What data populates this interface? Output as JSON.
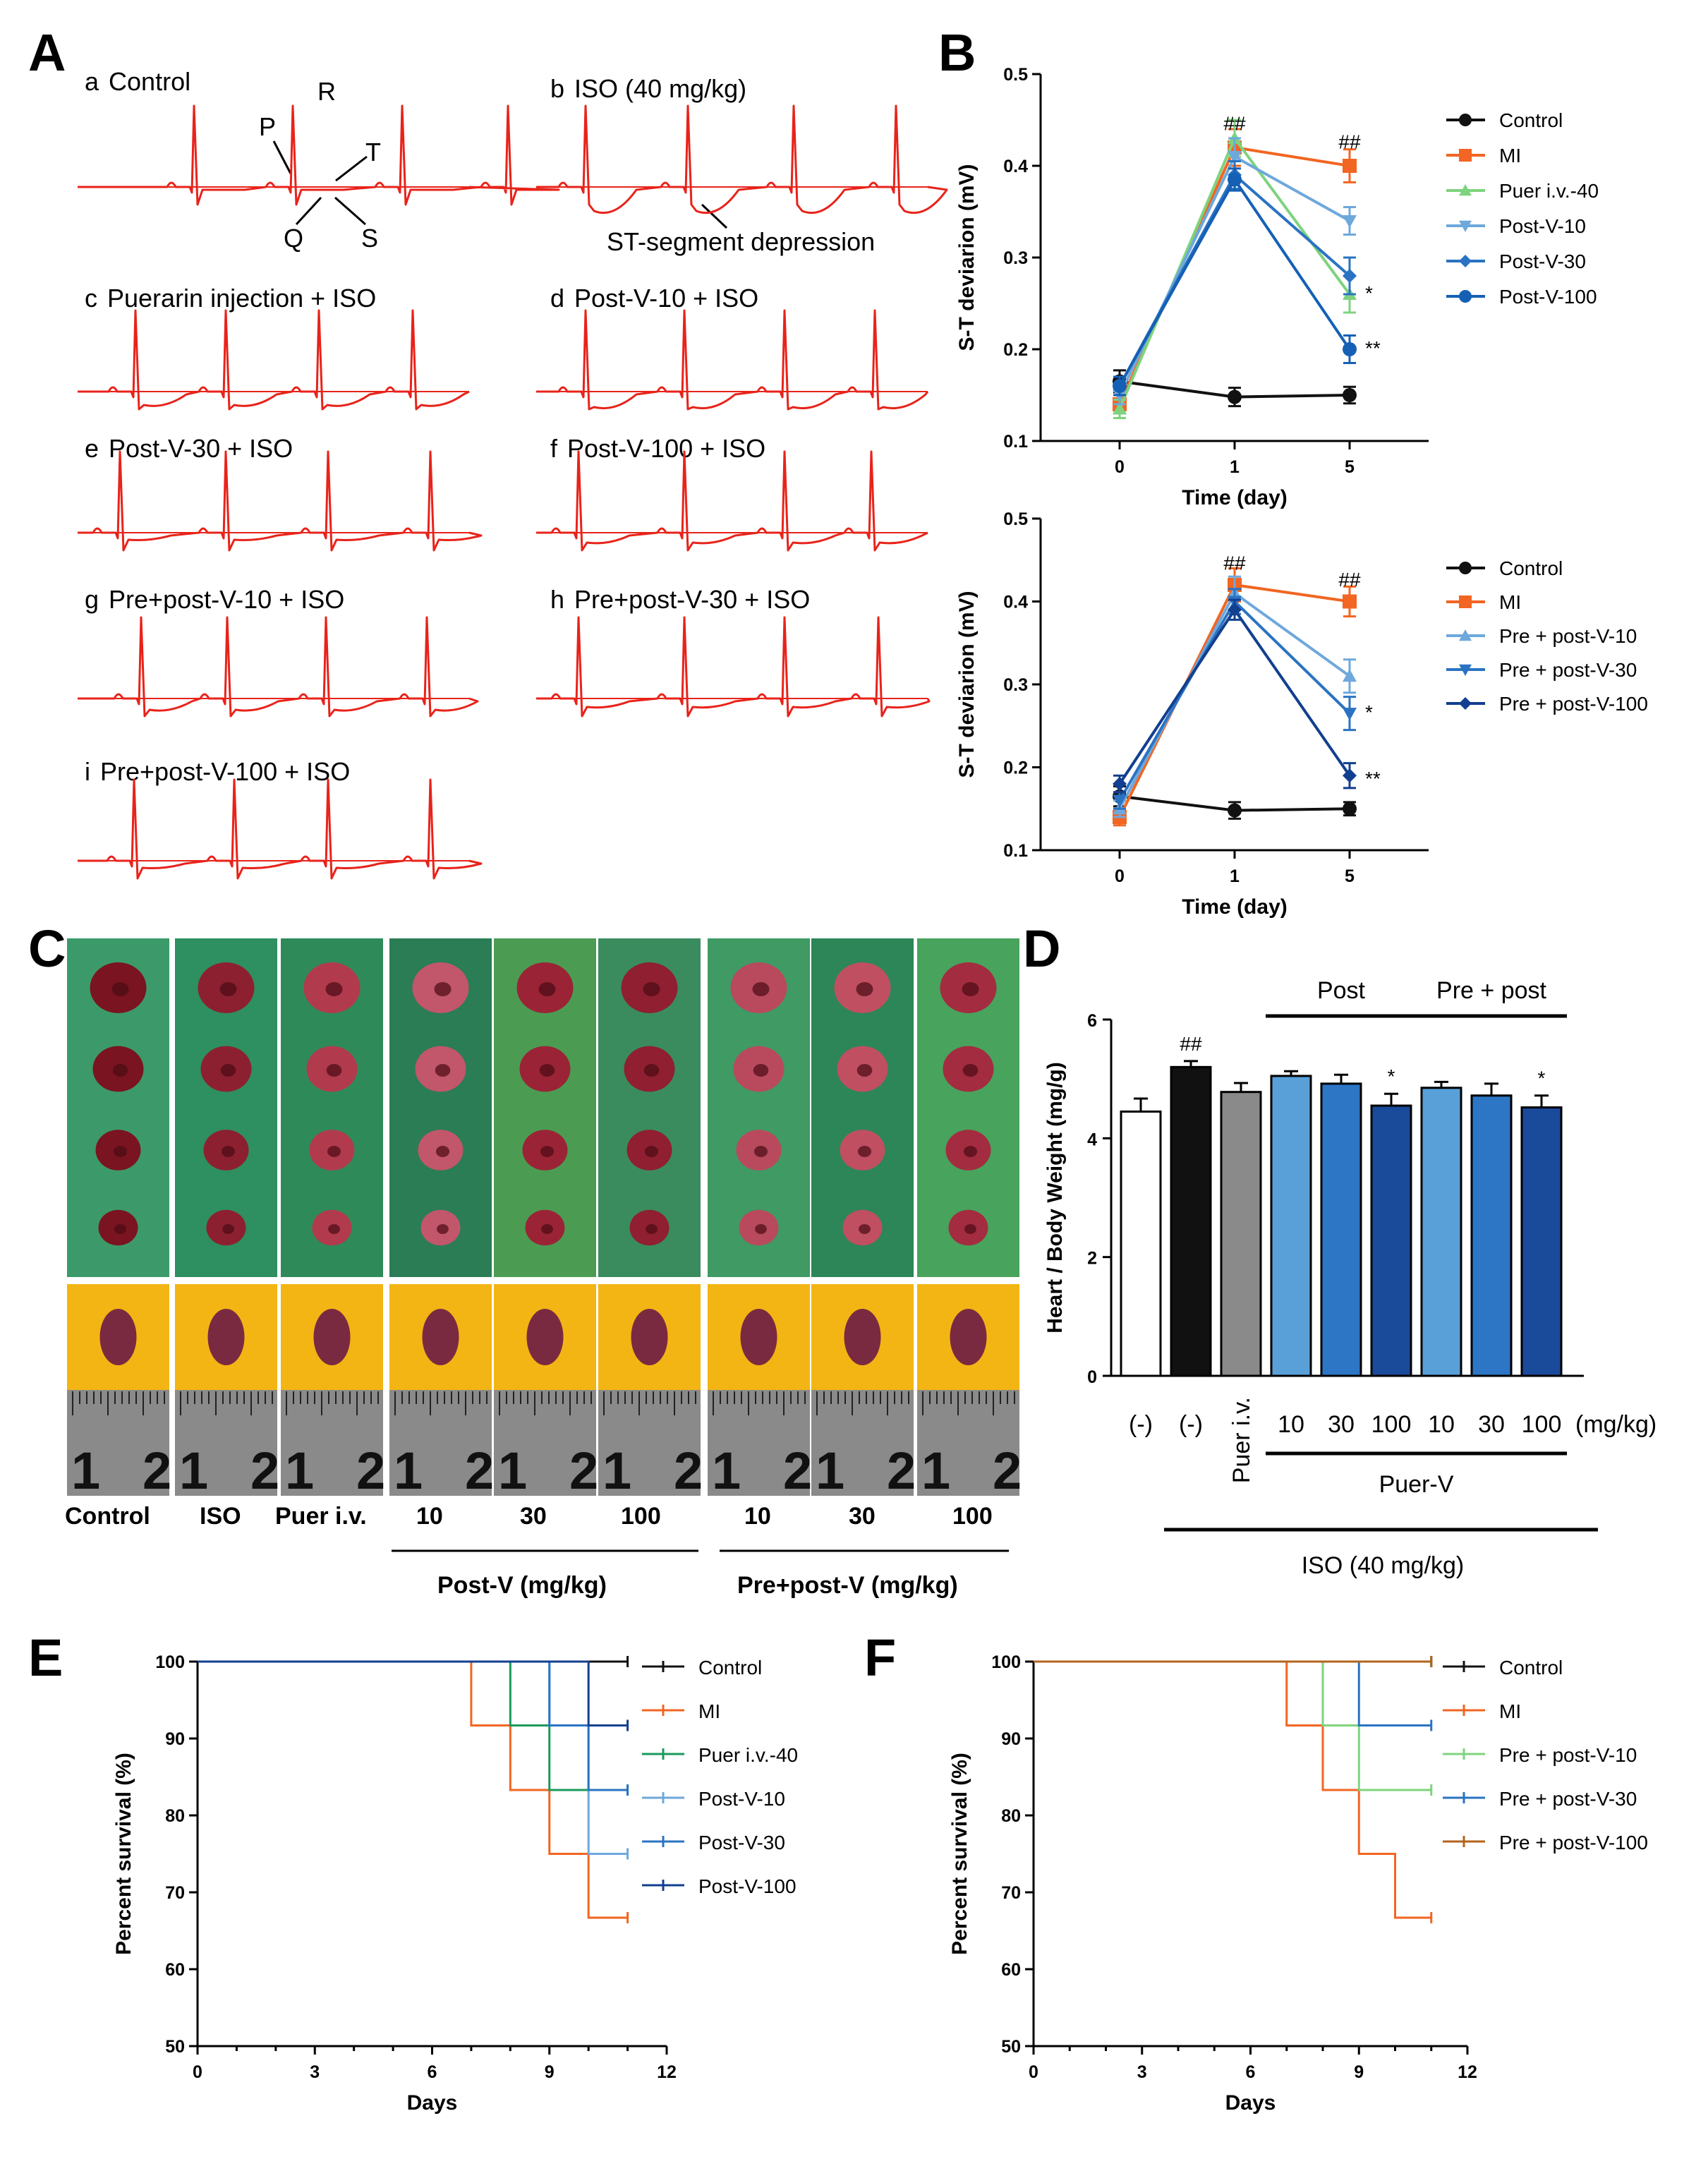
{
  "panels": {
    "A": {
      "letter": "A",
      "traces": [
        {
          "key": "a",
          "title": "Control"
        },
        {
          "key": "b",
          "title": "ISO (40 mg/kg)"
        },
        {
          "key": "c",
          "title": "Puerarin injection + ISO"
        },
        {
          "key": "d",
          "title": "Post-V-10 + ISO"
        },
        {
          "key": "e",
          "title": "Post-V-30 + ISO"
        },
        {
          "key": "f",
          "title": "Post-V-100 + ISO"
        },
        {
          "key": "g",
          "title": "Pre+post-V-10 + ISO"
        },
        {
          "key": "h",
          "title": "Pre+post-V-30 + ISO"
        },
        {
          "key": "i",
          "title": "Pre+post-V-100 + ISO"
        }
      ],
      "wave_labels": {
        "P": "P",
        "Q": "Q",
        "R": "R",
        "S": "S",
        "T": "T"
      },
      "st_annotation": "ST-segment depression",
      "trace_color": "#e8231a"
    },
    "B": {
      "letter": "B"
    },
    "C": {
      "letter": "C",
      "labels": [
        "Control",
        "ISO",
        "Puer i.v.",
        "10",
        "30",
        "100",
        "10",
        "30",
        "100"
      ],
      "group_post": "Post-V (mg/kg)",
      "group_pre": "Pre+post-V (mg/kg)",
      "ruler_numbers": [
        "1",
        "2"
      ]
    },
    "D": {
      "letter": "D"
    },
    "E": {
      "letter": "E"
    },
    "F": {
      "letter": "F"
    }
  },
  "chart_data": [
    {
      "id": "B-top",
      "type": "line",
      "ylabel": "S-T deviarion (mV)",
      "xlabel": "Time (day)",
      "x_categories": [
        "0",
        "1",
        "5"
      ],
      "ylim": [
        0.1,
        0.5
      ],
      "yticks": [
        "0.1",
        "0.2",
        "0.3",
        "0.4",
        "0.5"
      ],
      "annotations": [
        {
          "text": "##",
          "x": 1,
          "y": 0.445
        },
        {
          "text": "##",
          "x": 2,
          "y": 0.425
        },
        {
          "text": "*",
          "x": 2,
          "y": 0.26
        },
        {
          "text": "**",
          "x": 2,
          "y": 0.2
        }
      ],
      "series": [
        {
          "name": "Control",
          "color": "#111111",
          "marker": "circle",
          "values": [
            0.165,
            0.148,
            0.15
          ],
          "err": [
            0.012,
            0.01,
            0.009
          ]
        },
        {
          "name": "MI",
          "color": "#f26522",
          "marker": "square",
          "values": [
            0.14,
            0.42,
            0.4
          ],
          "err": [
            0.01,
            0.02,
            0.018
          ]
        },
        {
          "name": "Puer i.v.-40",
          "color": "#7ed37e",
          "marker": "triangle-up",
          "values": [
            0.135,
            0.43,
            0.26
          ],
          "err": [
            0.01,
            0.02,
            0.02
          ]
        },
        {
          "name": "Post-V-10",
          "color": "#6ea8dc",
          "marker": "triangle-down",
          "values": [
            0.15,
            0.41,
            0.34
          ],
          "err": [
            0.01,
            0.02,
            0.015
          ]
        },
        {
          "name": "Post-V-30",
          "color": "#2a73c2",
          "marker": "diamond",
          "values": [
            0.16,
            0.39,
            0.28
          ],
          "err": [
            0.01,
            0.015,
            0.02
          ]
        },
        {
          "name": "Post-V-100",
          "color": "#1560b5",
          "marker": "circle",
          "values": [
            0.16,
            0.385,
            0.2
          ],
          "err": [
            0.01,
            0.012,
            0.015
          ]
        }
      ]
    },
    {
      "id": "B-bottom",
      "type": "line",
      "ylabel": "S-T deviarion (mV)",
      "xlabel": "Time (day)",
      "x_categories": [
        "0",
        "1",
        "5"
      ],
      "ylim": [
        0.1,
        0.5
      ],
      "yticks": [
        "0.1",
        "0.2",
        "0.3",
        "0.4",
        "0.5"
      ],
      "annotations": [
        {
          "text": "##",
          "x": 1,
          "y": 0.445
        },
        {
          "text": "##",
          "x": 2,
          "y": 0.425
        },
        {
          "text": "*",
          "x": 2,
          "y": 0.265
        },
        {
          "text": "**",
          "x": 2,
          "y": 0.185
        }
      ],
      "series": [
        {
          "name": "Control",
          "color": "#111111",
          "marker": "circle",
          "values": [
            0.165,
            0.148,
            0.15
          ],
          "err": [
            0.012,
            0.01,
            0.008
          ]
        },
        {
          "name": "MI",
          "color": "#f26522",
          "marker": "square",
          "values": [
            0.14,
            0.42,
            0.4
          ],
          "err": [
            0.01,
            0.02,
            0.018
          ]
        },
        {
          "name": "Pre + post-V-10",
          "color": "#6ea8dc",
          "marker": "triangle-up",
          "values": [
            0.15,
            0.41,
            0.31
          ],
          "err": [
            0.01,
            0.02,
            0.02
          ]
        },
        {
          "name": "Pre + post-V-30",
          "color": "#2a73c2",
          "marker": "triangle-down",
          "values": [
            0.16,
            0.4,
            0.265
          ],
          "err": [
            0.01,
            0.015,
            0.02
          ]
        },
        {
          "name": "Pre + post-V-100",
          "color": "#123f8f",
          "marker": "diamond",
          "values": [
            0.18,
            0.39,
            0.19
          ],
          "err": [
            0.01,
            0.012,
            0.015
          ]
        }
      ]
    },
    {
      "id": "D",
      "type": "bar",
      "ylabel": "Heart / Body Weight (mg/g)",
      "ylim": [
        0,
        6
      ],
      "yticks": [
        "0",
        "2",
        "4",
        "6"
      ],
      "categories": [
        "(-)",
        "(-)",
        "Puer i.v.",
        "10",
        "30",
        "100",
        "10",
        "30",
        "100"
      ],
      "values": [
        4.45,
        5.2,
        4.78,
        5.05,
        4.92,
        4.55,
        4.85,
        4.72,
        4.52
      ],
      "err": [
        0.22,
        0.1,
        0.15,
        0.08,
        0.15,
        0.2,
        0.1,
        0.2,
        0.2
      ],
      "colors": [
        "#ffffff",
        "#111111",
        "#8a8a8a",
        "#5aa0d8",
        "#2c76c5",
        "#1a4a9a",
        "#5aa0d8",
        "#2c76c5",
        "#1a4a9a"
      ],
      "annotations": [
        {
          "text": "##",
          "bar": 1
        },
        {
          "text": "*",
          "bar": 5
        },
        {
          "text": "*",
          "bar": 8
        }
      ],
      "group_post": "Post",
      "group_prepost": "Pre + post",
      "unit_label": "(mg/kg)",
      "puer_v_label": "Puer-V",
      "iso_label": "ISO (40 mg/kg)"
    },
    {
      "id": "E",
      "type": "line",
      "subtype": "kaplan-meier",
      "ylabel": "Percent survival  (%)",
      "xlabel": "Days",
      "xlim": [
        0,
        12
      ],
      "xticks": [
        "0",
        "3",
        "6",
        "9",
        "12"
      ],
      "ylim": [
        50,
        100
      ],
      "yticks": [
        "50",
        "60",
        "70",
        "80",
        "90",
        "100"
      ],
      "series": [
        {
          "name": "Control",
          "color": "#111111",
          "steps": [
            [
              0,
              100
            ],
            [
              11,
              100
            ]
          ]
        },
        {
          "name": "MI",
          "color": "#f26522",
          "steps": [
            [
              0,
              100
            ],
            [
              7,
              91.7
            ],
            [
              8,
              83.3
            ],
            [
              9,
              75
            ],
            [
              10,
              66.7
            ],
            [
              11,
              66.7
            ]
          ]
        },
        {
          "name": "Puer i.v.-40",
          "color": "#1a9a5c",
          "steps": [
            [
              0,
              100
            ],
            [
              8,
              91.7
            ],
            [
              9,
              83.3
            ],
            [
              11,
              83.3
            ]
          ]
        },
        {
          "name": "Post-V-10",
          "color": "#6ea8dc",
          "steps": [
            [
              0,
              100
            ],
            [
              9,
              91.7
            ],
            [
              10,
              75
            ],
            [
              11,
              75
            ]
          ]
        },
        {
          "name": "Post-V-30",
          "color": "#2a73c2",
          "steps": [
            [
              0,
              100
            ],
            [
              9,
              91.7
            ],
            [
              10,
              83.3
            ],
            [
              11,
              83.3
            ]
          ]
        },
        {
          "name": "Post-V-100",
          "color": "#123f8f",
          "steps": [
            [
              0,
              100
            ],
            [
              10,
              91.7
            ],
            [
              11,
              91.7
            ]
          ]
        }
      ]
    },
    {
      "id": "F",
      "type": "line",
      "subtype": "kaplan-meier",
      "ylabel": "Percent survival  (%)",
      "xlabel": "Days",
      "xlim": [
        0,
        12
      ],
      "xticks": [
        "0",
        "3",
        "6",
        "9",
        "12"
      ],
      "ylim": [
        50,
        100
      ],
      "yticks": [
        "50",
        "60",
        "70",
        "80",
        "90",
        "100"
      ],
      "series": [
        {
          "name": "Control",
          "color": "#111111",
          "steps": [
            [
              0,
              100
            ],
            [
              11,
              100
            ]
          ]
        },
        {
          "name": "MI",
          "color": "#f26522",
          "steps": [
            [
              0,
              100
            ],
            [
              7,
              91.7
            ],
            [
              8,
              83.3
            ],
            [
              9,
              75
            ],
            [
              10,
              66.7
            ],
            [
              11,
              66.7
            ]
          ]
        },
        {
          "name": "Pre + post-V-10",
          "color": "#7ed37e",
          "steps": [
            [
              0,
              100
            ],
            [
              8,
              91.7
            ],
            [
              9,
              83.3
            ],
            [
              11,
              83.3
            ]
          ]
        },
        {
          "name": "Pre + post-V-30",
          "color": "#2a73c2",
          "steps": [
            [
              0,
              100
            ],
            [
              9,
              91.7
            ],
            [
              11,
              91.7
            ]
          ]
        },
        {
          "name": "Pre + post-V-100",
          "color": "#b3641c",
          "steps": [
            [
              0,
              100
            ],
            [
              10,
              100
            ],
            [
              11,
              100
            ]
          ]
        }
      ]
    }
  ]
}
